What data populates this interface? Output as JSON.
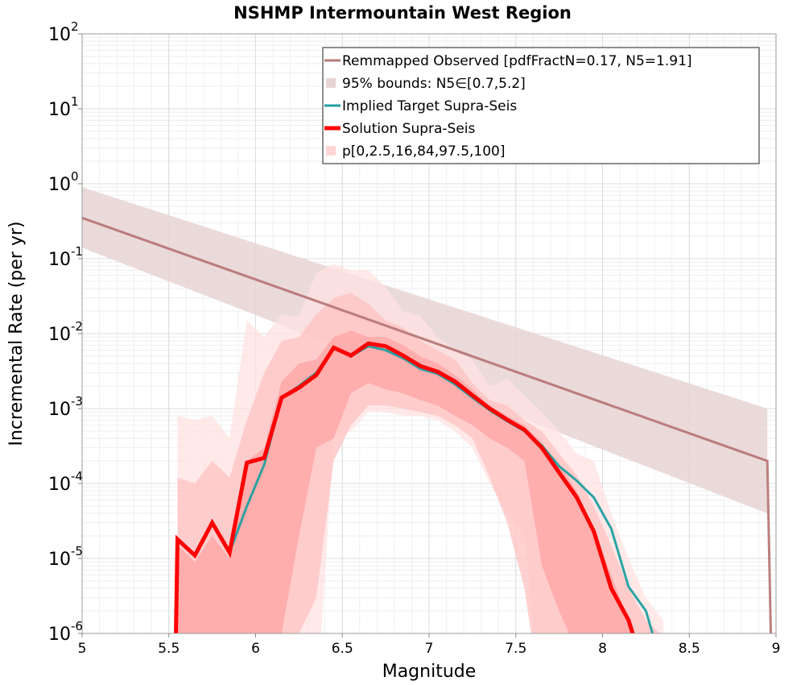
{
  "chart_data": {
    "type": "line",
    "title": "NSHMP Intermountain West Region",
    "xlabel": "Magnitude",
    "ylabel": "Incremental Rate (per yr)",
    "xlim": [
      5,
      9
    ],
    "ylim": [
      1e-06,
      100
    ],
    "yscale": "log",
    "grid": true,
    "legend_position": "top-right",
    "x_ticks": [
      5,
      5.5,
      6,
      6.5,
      7,
      7.5,
      8,
      8.5,
      9
    ],
    "x_tick_labels": [
      "5",
      "5.5",
      "6",
      "6.5",
      "7",
      "7.5",
      "8",
      "8.5",
      "9"
    ],
    "y_ticks": [
      {
        "value": 1e-06,
        "base": "10",
        "exp": "-6"
      },
      {
        "value": 1e-05,
        "base": "10",
        "exp": "-5"
      },
      {
        "value": 0.0001,
        "base": "10",
        "exp": "-4"
      },
      {
        "value": 0.001,
        "base": "10",
        "exp": "-3"
      },
      {
        "value": 0.01,
        "base": "10",
        "exp": "-2"
      },
      {
        "value": 0.1,
        "base": "10",
        "exp": "-1"
      },
      {
        "value": 1,
        "base": "10",
        "exp": "0"
      },
      {
        "value": 10,
        "base": "10",
        "exp": "1"
      },
      {
        "value": 100,
        "base": "10",
        "exp": "2"
      }
    ],
    "series": [
      {
        "name": "Remmapped Observed [pdfFractN=0.17, N5=1.91]",
        "color": "#b87878",
        "style": "line",
        "x": [
          5,
          8.95,
          8.97
        ],
        "y": [
          0.35,
          0.0002,
          1e-06
        ]
      },
      {
        "name": "95% bounds: N5∈[0.7,5.2]",
        "color": "#e8d4d4",
        "style": "band",
        "x": [
          5,
          8.95
        ],
        "y_low": [
          0.14,
          4e-05
        ],
        "y_high": [
          0.9,
          0.001
        ]
      },
      {
        "name": "Implied Target Supra-Seis",
        "color": "#20a0a0",
        "style": "line",
        "x": [
          5.85,
          5.95,
          6.05,
          6.15,
          6.25,
          6.35,
          6.45,
          6.55,
          6.65,
          6.75,
          6.85,
          6.95,
          7.05,
          7.15,
          7.25,
          7.35,
          7.45,
          7.55,
          7.65,
          7.75,
          7.85,
          7.95,
          8.05,
          8.15,
          8.25,
          8.3
        ],
        "y": [
          1.2e-05,
          5e-05,
          0.00018,
          0.0014,
          0.002,
          0.003,
          0.0065,
          0.005,
          0.0068,
          0.006,
          0.0047,
          0.0034,
          0.0029,
          0.0021,
          0.0014,
          0.00095,
          0.00068,
          0.0005,
          0.00032,
          0.00017,
          0.00011,
          6.5e-05,
          2.5e-05,
          4.2e-06,
          2e-06,
          8e-07
        ]
      },
      {
        "name": "Solution Supra-Seis",
        "color": "#ff0000",
        "style": "line",
        "x": [
          5.54,
          5.55,
          5.65,
          5.75,
          5.85,
          5.95,
          6.05,
          6.15,
          6.25,
          6.35,
          6.45,
          6.55,
          6.65,
          6.75,
          6.85,
          6.95,
          7.05,
          7.15,
          7.25,
          7.35,
          7.45,
          7.55,
          7.65,
          7.75,
          7.85,
          7.95,
          8.05,
          8.15,
          8.18
        ],
        "y": [
          8e-07,
          1.8e-05,
          1.1e-05,
          3e-05,
          1.2e-05,
          0.00019,
          0.00022,
          0.0014,
          0.0019,
          0.0028,
          0.0065,
          0.0051,
          0.0074,
          0.0068,
          0.0051,
          0.0037,
          0.0031,
          0.0023,
          0.0015,
          0.001,
          0.00071,
          0.00052,
          0.0003,
          0.00014,
          6.6e-05,
          2.3e-05,
          4e-06,
          1.5e-06,
          9e-07
        ]
      },
      {
        "name": "p[0,2.5,16,84,97.5,100]",
        "color": "#ffd6d6",
        "style": "percentile-bands",
        "x": [
          5.55,
          5.65,
          5.75,
          5.85,
          5.95,
          6.05,
          6.15,
          6.25,
          6.35,
          6.45,
          6.55,
          6.65,
          6.75,
          6.85,
          6.95,
          7.05,
          7.15,
          7.25,
          7.35,
          7.45,
          7.55,
          7.65,
          7.75,
          7.85,
          7.95,
          8.05,
          8.15,
          8.25,
          8.35
        ],
        "bands": [
          {
            "label": "p0-p100",
            "color": "#ffe1e1",
            "low": [
              1e-07,
              1e-07,
              1e-07,
              1e-07,
              1e-07,
              1e-07,
              1e-07,
              1e-07,
              1e-07,
              0.0004,
              0.0005,
              0.0009,
              0.0009,
              0.0008,
              0.0008,
              0.0007,
              0.0005,
              0.0003,
              0.0001,
              4e-05,
              2e-05,
              1e-07,
              1e-07,
              1e-07,
              1e-07,
              1e-07,
              1e-07,
              1e-07,
              1e-07
            ],
            "high": [
              0.0008,
              0.0007,
              0.0008,
              0.0004,
              0.015,
              0.009,
              0.018,
              0.017,
              0.065,
              0.085,
              0.07,
              0.07,
              0.042,
              0.02,
              0.017,
              0.009,
              0.006,
              0.0045,
              0.002,
              0.0025,
              0.0015,
              0.0009,
              0.0005,
              0.00025,
              0.0002,
              4e-05,
              1e-05,
              3e-06,
              1.5e-06
            ]
          },
          {
            "label": "p2.5-p97.5",
            "color": "#ffc2c2",
            "low": [
              1e-07,
              1e-07,
              1e-07,
              1e-07,
              1e-07,
              1e-07,
              1e-07,
              1e-06,
              3e-06,
              0.0002,
              0.0006,
              0.0011,
              0.0011,
              0.001,
              0.0009,
              0.0008,
              0.0006,
              0.0004,
              0.00012,
              3e-05,
              4e-06,
              1e-07,
              1e-07,
              1e-07,
              1e-07,
              1e-07,
              1e-07,
              1e-07,
              1e-07
            ],
            "high": [
              0.00012,
              0.0001,
              0.0002,
              0.00012,
              0.0007,
              0.003,
              0.008,
              0.009,
              0.018,
              0.03,
              0.035,
              0.025,
              0.015,
              0.012,
              0.008,
              0.006,
              0.0045,
              0.0022,
              0.0013,
              0.0011,
              0.0007,
              0.0005,
              0.00025,
              0.00013,
              5e-05,
              1.5e-05,
              4e-06,
              1.5e-06,
              9e-07
            ]
          },
          {
            "label": "p16-p84",
            "color": "#ffa3a3",
            "low": [
              1e-07,
              1e-07,
              1e-07,
              1e-07,
              1e-07,
              9e-07,
              1e-06,
              2e-05,
              0.0003,
              0.0004,
              0.0016,
              0.0022,
              0.0018,
              0.0016,
              0.0013,
              0.0011,
              0.0008,
              0.0006,
              0.0004,
              0.0003,
              0.0002,
              8e-06,
              2e-06,
              6e-07,
              1e-07,
              1e-07,
              1e-07,
              1e-07,
              1e-07
            ],
            "high": [
              1.5e-05,
              9e-06,
              2e-05,
              1e-05,
              0.0002,
              0.0003,
              0.0023,
              0.004,
              0.0045,
              0.009,
              0.011,
              0.009,
              0.009,
              0.007,
              0.005,
              0.004,
              0.0028,
              0.0018,
              0.0011,
              0.0008,
              0.0006,
              0.00035,
              0.00018,
              8e-05,
              2.5e-05,
              6e-06,
              1.5e-06,
              5e-07,
              4e-07
            ]
          }
        ]
      }
    ]
  },
  "legend": {
    "items": [
      {
        "label": "Remmapped Observed [pdfFractN=0.17, N5=1.91]",
        "swatch": "line",
        "color": "#b87878"
      },
      {
        "label": "95% bounds: N5∈[0.7,5.2]",
        "swatch": "square",
        "color": "#e8d4d4"
      },
      {
        "label": "Implied Target Supra-Seis",
        "swatch": "line",
        "color": "#20a0a0"
      },
      {
        "label": "Solution Supra-Seis",
        "swatch": "thick-line",
        "color": "#ff0000"
      },
      {
        "label": "p[0,2.5,16,84,97.5,100]",
        "swatch": "square",
        "color": "#ffd6d6"
      }
    ]
  }
}
